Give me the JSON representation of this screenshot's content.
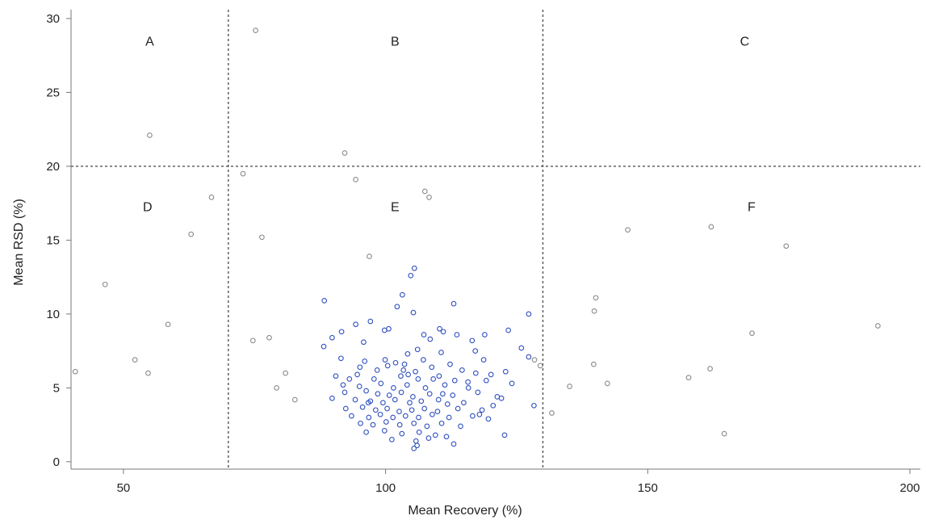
{
  "chart_data": {
    "type": "scatter",
    "title": "",
    "xlabel": "Mean Recovery (%)",
    "ylabel": "Mean RSD (%)",
    "xlim": [
      40,
      202
    ],
    "ylim": [
      -0.5,
      30.6
    ],
    "xticks": [
      50,
      100,
      150,
      200
    ],
    "yticks": [
      0,
      5,
      10,
      15,
      20,
      25,
      30
    ],
    "grid": false,
    "legend": "none",
    "colors": {
      "outer": "#8a8a8a",
      "core": "#3050c0",
      "guides": "#555555"
    },
    "reference_lines": {
      "x": [
        70,
        130
      ],
      "y": [
        20
      ]
    },
    "regions": [
      {
        "label": "A",
        "x": 55,
        "y": 28.5
      },
      {
        "label": "B",
        "x": 101.8,
        "y": 28.5
      },
      {
        "label": "C",
        "x": 168.5,
        "y": 28.5
      },
      {
        "label": "D",
        "x": 54.6,
        "y": 17.3
      },
      {
        "label": "E",
        "x": 101.8,
        "y": 17.3
      },
      {
        "label": "F",
        "x": 169.8,
        "y": 17.3
      }
    ],
    "series": [
      {
        "points": [
          [
            75.2,
            29.2
          ],
          [
            55,
            22.1
          ],
          [
            92.2,
            20.9
          ],
          [
            72.8,
            19.5
          ],
          [
            94.3,
            19.1
          ],
          [
            107.5,
            18.3
          ],
          [
            108.3,
            17.9
          ],
          [
            66.8,
            17.9
          ],
          [
            62.9,
            15.4
          ],
          [
            76.4,
            15.2
          ],
          [
            146.2,
            15.7
          ],
          [
            162.1,
            15.9
          ],
          [
            176.4,
            14.6
          ],
          [
            96.9,
            13.9
          ],
          [
            46.5,
            12
          ],
          [
            58.5,
            9.3
          ],
          [
            74.7,
            8.2
          ],
          [
            77.8,
            8.4
          ],
          [
            52.2,
            6.9
          ],
          [
            40.8,
            6.1
          ],
          [
            54.7,
            6
          ],
          [
            80.9,
            6
          ],
          [
            79.2,
            5
          ],
          [
            82.7,
            4.2
          ],
          [
            140.1,
            11.1
          ],
          [
            139.8,
            10.2
          ],
          [
            169.9,
            8.7
          ],
          [
            193.9,
            9.2
          ],
          [
            139.7,
            6.6
          ],
          [
            135.1,
            5.1
          ],
          [
            142.3,
            5.3
          ],
          [
            157.8,
            5.7
          ],
          [
            161.9,
            6.3
          ],
          [
            131.7,
            3.3
          ],
          [
            164.6,
            1.9
          ],
          [
            129.5,
            6.5
          ],
          [
            128.4,
            6.9
          ]
        ]
      },
      {
        "points": [
          [
            105.5,
            13.1
          ],
          [
            104.8,
            12.6
          ],
          [
            103.2,
            11.3
          ],
          [
            102.2,
            10.5
          ],
          [
            105.3,
            10.1
          ],
          [
            113,
            10.7
          ],
          [
            88.3,
            10.9
          ],
          [
            127.3,
            10
          ],
          [
            97.1,
            9.5
          ],
          [
            94.3,
            9.3
          ],
          [
            100.6,
            9
          ],
          [
            110.3,
            9
          ],
          [
            123.4,
            8.9
          ],
          [
            91.6,
            8.8
          ],
          [
            99.8,
            8.9
          ],
          [
            107.3,
            8.6
          ],
          [
            111,
            8.8
          ],
          [
            113.6,
            8.6
          ],
          [
            118.9,
            8.6
          ],
          [
            89.8,
            8.4
          ],
          [
            95.8,
            8.1
          ],
          [
            108.5,
            8.3
          ],
          [
            116.5,
            8.2
          ],
          [
            88.2,
            7.8
          ],
          [
            106.1,
            7.6
          ],
          [
            125.9,
            7.7
          ],
          [
            104.2,
            7.3
          ],
          [
            110.6,
            7.4
          ],
          [
            117.1,
            7.5
          ],
          [
            127.3,
            7.1
          ],
          [
            91.5,
            7
          ],
          [
            96,
            6.8
          ],
          [
            99.9,
            6.9
          ],
          [
            101.9,
            6.7
          ],
          [
            107.2,
            6.9
          ],
          [
            112.3,
            6.6
          ],
          [
            118.7,
            6.9
          ],
          [
            95.1,
            6.4
          ],
          [
            100.4,
            6.5
          ],
          [
            103.4,
            6.2
          ],
          [
            105.7,
            6.1
          ],
          [
            108.8,
            6.4
          ],
          [
            114.6,
            6.2
          ],
          [
            117.2,
            6
          ],
          [
            122.9,
            6.1
          ],
          [
            90.5,
            5.8
          ],
          [
            93.1,
            5.6
          ],
          [
            97.8,
            5.6
          ],
          [
            102.9,
            5.8
          ],
          [
            106.2,
            5.6
          ],
          [
            110.2,
            5.8
          ],
          [
            113.2,
            5.5
          ],
          [
            119.2,
            5.5
          ],
          [
            95,
            5.1
          ],
          [
            99.1,
            5.3
          ],
          [
            101.5,
            5
          ],
          [
            104.1,
            5.2
          ],
          [
            107.6,
            5
          ],
          [
            111.3,
            5.2
          ],
          [
            115.8,
            5
          ],
          [
            92.2,
            4.7
          ],
          [
            96.3,
            4.8
          ],
          [
            98.5,
            4.6
          ],
          [
            100.7,
            4.5
          ],
          [
            103,
            4.7
          ],
          [
            105.2,
            4.4
          ],
          [
            108.4,
            4.6
          ],
          [
            112.8,
            4.5
          ],
          [
            117.6,
            4.7
          ],
          [
            121.3,
            4.4
          ],
          [
            89.8,
            4.3
          ],
          [
            94.2,
            4.2
          ],
          [
            97.1,
            4.1
          ],
          [
            99.5,
            4
          ],
          [
            101.8,
            4.2
          ],
          [
            104.6,
            4
          ],
          [
            106.8,
            4.1
          ],
          [
            110.1,
            4.2
          ],
          [
            114.9,
            4
          ],
          [
            120.5,
            3.8
          ],
          [
            92.4,
            3.6
          ],
          [
            95.6,
            3.7
          ],
          [
            98.1,
            3.5
          ],
          [
            100.3,
            3.6
          ],
          [
            102.6,
            3.4
          ],
          [
            105,
            3.5
          ],
          [
            107.4,
            3.6
          ],
          [
            109.9,
            3.4
          ],
          [
            113.8,
            3.6
          ],
          [
            118.4,
            3.5
          ],
          [
            128.3,
            3.8
          ],
          [
            93.5,
            3.1
          ],
          [
            96.8,
            3
          ],
          [
            99,
            3.2
          ],
          [
            101.4,
            3
          ],
          [
            103.8,
            3.1
          ],
          [
            106.3,
            3
          ],
          [
            108.9,
            3.2
          ],
          [
            112.1,
            3
          ],
          [
            116.6,
            3.1
          ],
          [
            95.2,
            2.6
          ],
          [
            97.6,
            2.5
          ],
          [
            100.1,
            2.7
          ],
          [
            102.7,
            2.5
          ],
          [
            105.4,
            2.6
          ],
          [
            107.9,
            2.4
          ],
          [
            110.7,
            2.6
          ],
          [
            114.3,
            2.4
          ],
          [
            96.3,
            2
          ],
          [
            99.8,
            2.1
          ],
          [
            103.1,
            1.9
          ],
          [
            106.4,
            2
          ],
          [
            109.5,
            1.8
          ],
          [
            122.7,
            1.8
          ],
          [
            101.2,
            1.5
          ],
          [
            105.8,
            1.4
          ],
          [
            108.2,
            1.6
          ],
          [
            111.6,
            1.7
          ],
          [
            113,
            1.2
          ],
          [
            105.4,
            0.9
          ],
          [
            106,
            1.1
          ],
          [
            120.1,
            5.9
          ],
          [
            122.1,
            4.3
          ],
          [
            117.9,
            3.2
          ],
          [
            119.6,
            2.9
          ],
          [
            124.1,
            5.3
          ],
          [
            94.6,
            5.9
          ],
          [
            91.9,
            5.2
          ],
          [
            96.7,
            4
          ],
          [
            104.3,
            5.9
          ],
          [
            109.1,
            5.6
          ],
          [
            110.9,
            4.6
          ],
          [
            111.8,
            3.9
          ],
          [
            98.4,
            6.2
          ],
          [
            103.6,
            6.6
          ],
          [
            115.7,
            5.4
          ]
        ]
      }
    ]
  }
}
